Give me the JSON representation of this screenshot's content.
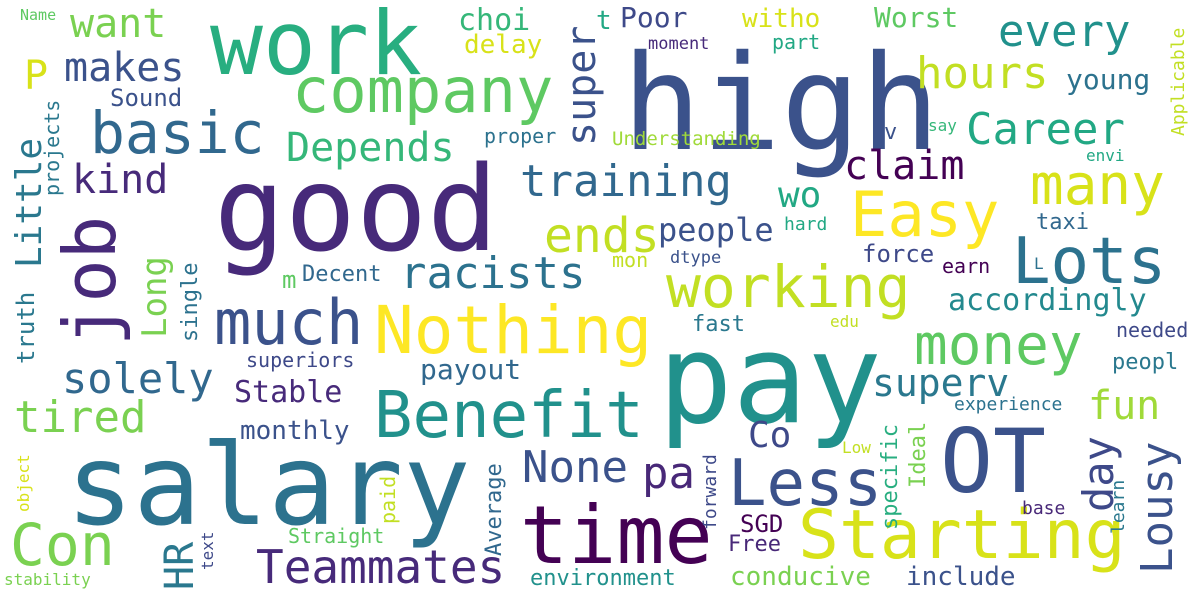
{
  "palette": {
    "deep_purple": "#440154",
    "indigo": "#472a7a",
    "dark_blue": "#3b528b",
    "steel_blue": "#2c728e",
    "teal": "#21918c",
    "sea_green": "#28ae80",
    "green": "#5ec962",
    "lime": "#addc30",
    "yellow": "#fde725"
  },
  "words": [
    {
      "text": "high",
      "color": "#3b528b"
    },
    {
      "text": "pay",
      "color": "#21918c"
    },
    {
      "text": "salary",
      "color": "#2c728e"
    },
    {
      "text": "good",
      "color": "#472a7a"
    },
    {
      "text": "work",
      "color": "#28ae80"
    },
    {
      "text": "time",
      "color": "#440154"
    },
    {
      "text": "OT",
      "color": "#3b528b"
    },
    {
      "text": "company",
      "color": "#5ec962"
    },
    {
      "text": "Nothing",
      "color": "#fde725"
    },
    {
      "text": "Starting",
      "color": "#d8e219"
    },
    {
      "text": "job",
      "color": "#472a7a"
    },
    {
      "text": "Less",
      "color": "#3b528b"
    },
    {
      "text": "Benefit",
      "color": "#21918c"
    },
    {
      "text": "working",
      "color": "#c2df23"
    },
    {
      "text": "Lots",
      "color": "#2c728e"
    },
    {
      "text": "Easy",
      "color": "#fde725"
    },
    {
      "text": "much",
      "color": "#3b528b"
    },
    {
      "text": "money",
      "color": "#5ec962"
    },
    {
      "text": "many",
      "color": "#d8e219"
    },
    {
      "text": "basic",
      "color": "#31688e"
    },
    {
      "text": "Con",
      "color": "#7ad151"
    },
    {
      "text": "Teammates",
      "color": "#472a7a"
    },
    {
      "text": "racists",
      "color": "#2c728e"
    },
    {
      "text": "training",
      "color": "#31688e"
    },
    {
      "text": "Career",
      "color": "#22a884"
    },
    {
      "text": "hours",
      "color": "#c2df23"
    },
    {
      "text": "ends",
      "color": "#c2df23"
    },
    {
      "text": "every",
      "color": "#21918c"
    },
    {
      "text": "tired",
      "color": "#7ad151"
    },
    {
      "text": "solely",
      "color": "#31688e"
    },
    {
      "text": "Depends",
      "color": "#35b779"
    },
    {
      "text": "super",
      "color": "#3b528b"
    },
    {
      "text": "claim",
      "color": "#440154"
    },
    {
      "text": "kind",
      "color": "#472a7a"
    },
    {
      "text": "makes",
      "color": "#3b528b"
    },
    {
      "text": "want",
      "color": "#7ad151"
    },
    {
      "text": "None",
      "color": "#3b528b"
    },
    {
      "text": "pa",
      "color": "#482878"
    },
    {
      "text": "fun",
      "color": "#a0da39"
    },
    {
      "text": "Lousy",
      "color": "#3b528b"
    },
    {
      "text": "day",
      "color": "#3e4989"
    },
    {
      "text": "superv",
      "color": "#2a788e"
    },
    {
      "text": "accordingly",
      "color": "#23898e"
    },
    {
      "text": "Little",
      "color": "#2a788e"
    },
    {
      "text": "Long",
      "color": "#7ad151"
    },
    {
      "text": "HR",
      "color": "#2a788e"
    },
    {
      "text": "Co",
      "color": "#3e4989"
    },
    {
      "text": "people",
      "color": "#3b528b"
    },
    {
      "text": "wo",
      "color": "#22a884"
    },
    {
      "text": "Stable",
      "color": "#472a7a"
    },
    {
      "text": "payout",
      "color": "#31688e"
    },
    {
      "text": "monthly",
      "color": "#3b528b"
    },
    {
      "text": "young",
      "color": "#2c728e"
    },
    {
      "text": "Poor",
      "color": "#3e4989"
    },
    {
      "text": "Worst",
      "color": "#5ec962"
    },
    {
      "text": "choi",
      "color": "#35b779"
    },
    {
      "text": "witho",
      "color": "#d8e219"
    },
    {
      "text": "delay",
      "color": "#d8e219"
    },
    {
      "text": "part",
      "color": "#22a884"
    },
    {
      "text": "moment",
      "color": "#472a7a"
    },
    {
      "text": "t",
      "color": "#22a884"
    },
    {
      "text": "P",
      "color": "#d8e219"
    },
    {
      "text": "Sound",
      "color": "#3b528b"
    },
    {
      "text": "proper",
      "color": "#2c728e"
    },
    {
      "text": "Understanding",
      "color": "#a0da39"
    },
    {
      "text": "v",
      "color": "#3b528b"
    },
    {
      "text": "say",
      "color": "#35b779"
    },
    {
      "text": "envi",
      "color": "#22a884"
    },
    {
      "text": "Applicable",
      "color": "#c2df23"
    },
    {
      "text": "projects",
      "color": "#2a788e"
    },
    {
      "text": "Name",
      "color": "#5ec962"
    },
    {
      "text": "hard",
      "color": "#22a884"
    },
    {
      "text": "taxi",
      "color": "#31688e"
    },
    {
      "text": "force",
      "color": "#3e4989"
    },
    {
      "text": "earn",
      "color": "#440154"
    },
    {
      "text": "L",
      "color": "#2c728e"
    },
    {
      "text": "mon",
      "color": "#c2df23"
    },
    {
      "text": "dtype",
      "color": "#3b528b"
    },
    {
      "text": "Decent",
      "color": "#31688e"
    },
    {
      "text": "m",
      "color": "#5ec962"
    },
    {
      "text": "fast",
      "color": "#2a788e"
    },
    {
      "text": "edu",
      "color": "#c2df23"
    },
    {
      "text": "needed",
      "color": "#3e4989"
    },
    {
      "text": "single",
      "color": "#2c728e"
    },
    {
      "text": "truth",
      "color": "#2a788e"
    },
    {
      "text": "superiors",
      "color": "#3e4989"
    },
    {
      "text": "peopl",
      "color": "#2a788e"
    },
    {
      "text": "experience",
      "color": "#2c728e"
    },
    {
      "text": "Ideal",
      "color": "#7ad151"
    },
    {
      "text": "specific",
      "color": "#28ae80"
    },
    {
      "text": "Low",
      "color": "#c2df23"
    },
    {
      "text": "forward",
      "color": "#3e4989"
    },
    {
      "text": "learn",
      "color": "#2a788e"
    },
    {
      "text": "base",
      "color": "#482878"
    },
    {
      "text": "Average",
      "color": "#31688e"
    },
    {
      "text": "paid",
      "color": "#c2df23"
    },
    {
      "text": "object",
      "color": "#d8e219"
    },
    {
      "text": "text",
      "color": "#3e4989"
    },
    {
      "text": "Straight",
      "color": "#5ec962"
    },
    {
      "text": "SGD",
      "color": "#440154"
    },
    {
      "text": "Free",
      "color": "#482878"
    },
    {
      "text": "environment",
      "color": "#21918c"
    },
    {
      "text": "conducive",
      "color": "#7ad151"
    },
    {
      "text": "include",
      "color": "#3b528b"
    },
    {
      "text": "stability",
      "color": "#7ad151"
    }
  ]
}
